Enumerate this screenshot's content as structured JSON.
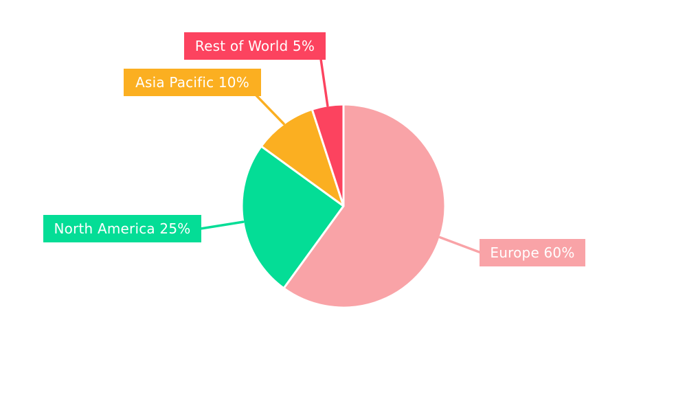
{
  "chart_data": {
    "type": "pie",
    "title": "",
    "categories": [
      "Europe",
      "North America",
      "Asia Pacific",
      "Rest of World"
    ],
    "values": [
      60,
      25,
      10,
      5
    ],
    "value_unit": "%",
    "start_angle_deg": 0,
    "direction": "clockwise",
    "labels_style": "external-callout-boxes-with-leader-lines",
    "slices": [
      {
        "label": "Europe",
        "value": 60,
        "label_text": "Europe 60%",
        "color": "#F9A3A7"
      },
      {
        "label": "North America",
        "value": 25,
        "label_text": "North America 25%",
        "color": "#04DD96"
      },
      {
        "label": "Asia Pacific",
        "value": 10,
        "label_text": "Asia Pacific 10%",
        "color": "#FBAF21"
      },
      {
        "label": "Rest of World",
        "value": 5,
        "label_text": "Rest of World 5%",
        "color": "#FC435F"
      }
    ],
    "slice_gap_color": "#FFFFFF",
    "label_text_color": "#FFFFFF",
    "background": "#FFFFFF",
    "legend": "none",
    "grid": false
  }
}
